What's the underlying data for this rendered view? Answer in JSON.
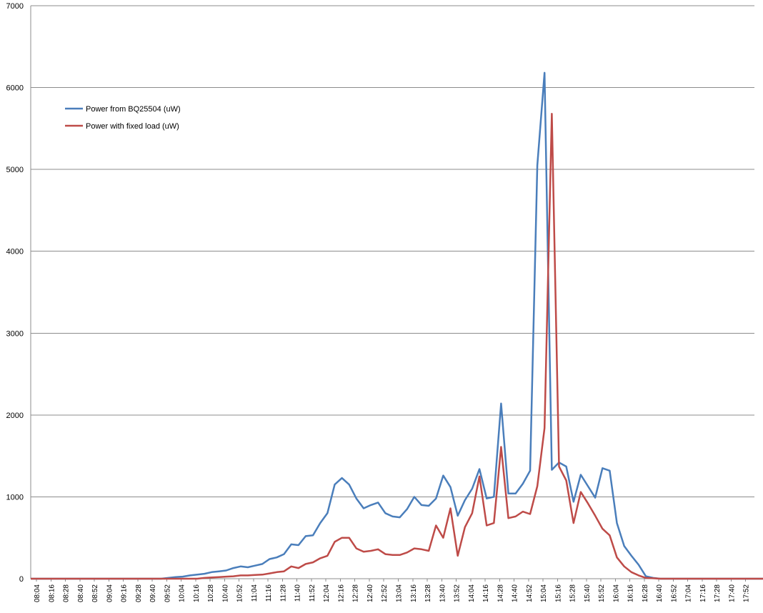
{
  "chart_data": {
    "type": "line",
    "title": "",
    "xlabel": "",
    "ylabel": "",
    "ylim": [
      0,
      7000
    ],
    "yticks": [
      0,
      1000,
      2000,
      3000,
      4000,
      5000,
      6000,
      7000
    ],
    "grid": "horizontal",
    "legend_position": "top-left",
    "x_tick_labels": [
      "08:04",
      "08:16",
      "08:28",
      "08:40",
      "08:52",
      "09:04",
      "09:16",
      "09:28",
      "09:40",
      "09:52",
      "10:04",
      "10:16",
      "10:28",
      "10:40",
      "10:52",
      "11:04",
      "11:16",
      "11:28",
      "11:40",
      "11:52",
      "12:04",
      "12:16",
      "12:28",
      "12:40",
      "12:52",
      "13:04",
      "13:16",
      "13:28",
      "13:40",
      "13:52",
      "14:04",
      "14:16",
      "14:28",
      "14:40",
      "14:52",
      "15:04",
      "15:16",
      "15:28",
      "15:40",
      "15:52",
      "16:04",
      "16:16",
      "16:28",
      "16:40",
      "16:52",
      "17:04",
      "17:16",
      "17:28",
      "17:40",
      "17:52"
    ],
    "x_start": "08:04",
    "x_interval_minutes": 6,
    "series": [
      {
        "name": "Power from BQ25504 (uW)",
        "color": "#4a7ebb",
        "values": [
          0,
          0,
          0,
          0,
          0,
          0,
          0,
          0,
          0,
          0,
          0,
          0,
          0,
          0,
          0,
          0,
          0,
          0,
          0,
          10,
          20,
          25,
          40,
          50,
          60,
          80,
          90,
          100,
          130,
          150,
          140,
          160,
          180,
          240,
          260,
          300,
          420,
          410,
          520,
          530,
          680,
          800,
          1150,
          1230,
          1150,
          980,
          860,
          900,
          930,
          800,
          760,
          750,
          850,
          1000,
          900,
          890,
          980,
          1260,
          1120,
          770,
          960,
          1100,
          1340,
          980,
          1000,
          2140,
          1040,
          1040,
          1160,
          1320,
          5050,
          6180,
          1330,
          1420,
          1370,
          940,
          1270,
          1130,
          990,
          1350,
          1320,
          680,
          400,
          280,
          170,
          30,
          10,
          0,
          0,
          0,
          0,
          0,
          0,
          0,
          0,
          0,
          0,
          0,
          0,
          0,
          0,
          0,
          0
        ]
      },
      {
        "name": "Power with fixed load (uW)",
        "color": "#be4b48",
        "values": [
          0,
          0,
          0,
          0,
          0,
          0,
          0,
          0,
          0,
          0,
          0,
          0,
          0,
          0,
          0,
          0,
          0,
          0,
          0,
          0,
          0,
          0,
          0,
          0,
          10,
          15,
          20,
          25,
          30,
          40,
          40,
          45,
          50,
          65,
          80,
          90,
          150,
          130,
          180,
          200,
          250,
          280,
          450,
          500,
          500,
          370,
          330,
          340,
          360,
          300,
          290,
          290,
          320,
          370,
          360,
          340,
          650,
          500,
          860,
          280,
          630,
          800,
          1250,
          650,
          680,
          1610,
          740,
          760,
          820,
          790,
          1130,
          1840,
          5680,
          1370,
          1200,
          680,
          1060,
          920,
          770,
          610,
          530,
          260,
          150,
          80,
          40,
          10,
          5,
          0,
          0,
          0,
          0,
          0,
          0,
          0,
          0,
          0,
          0,
          0,
          0,
          0,
          0,
          0,
          0
        ]
      }
    ]
  }
}
